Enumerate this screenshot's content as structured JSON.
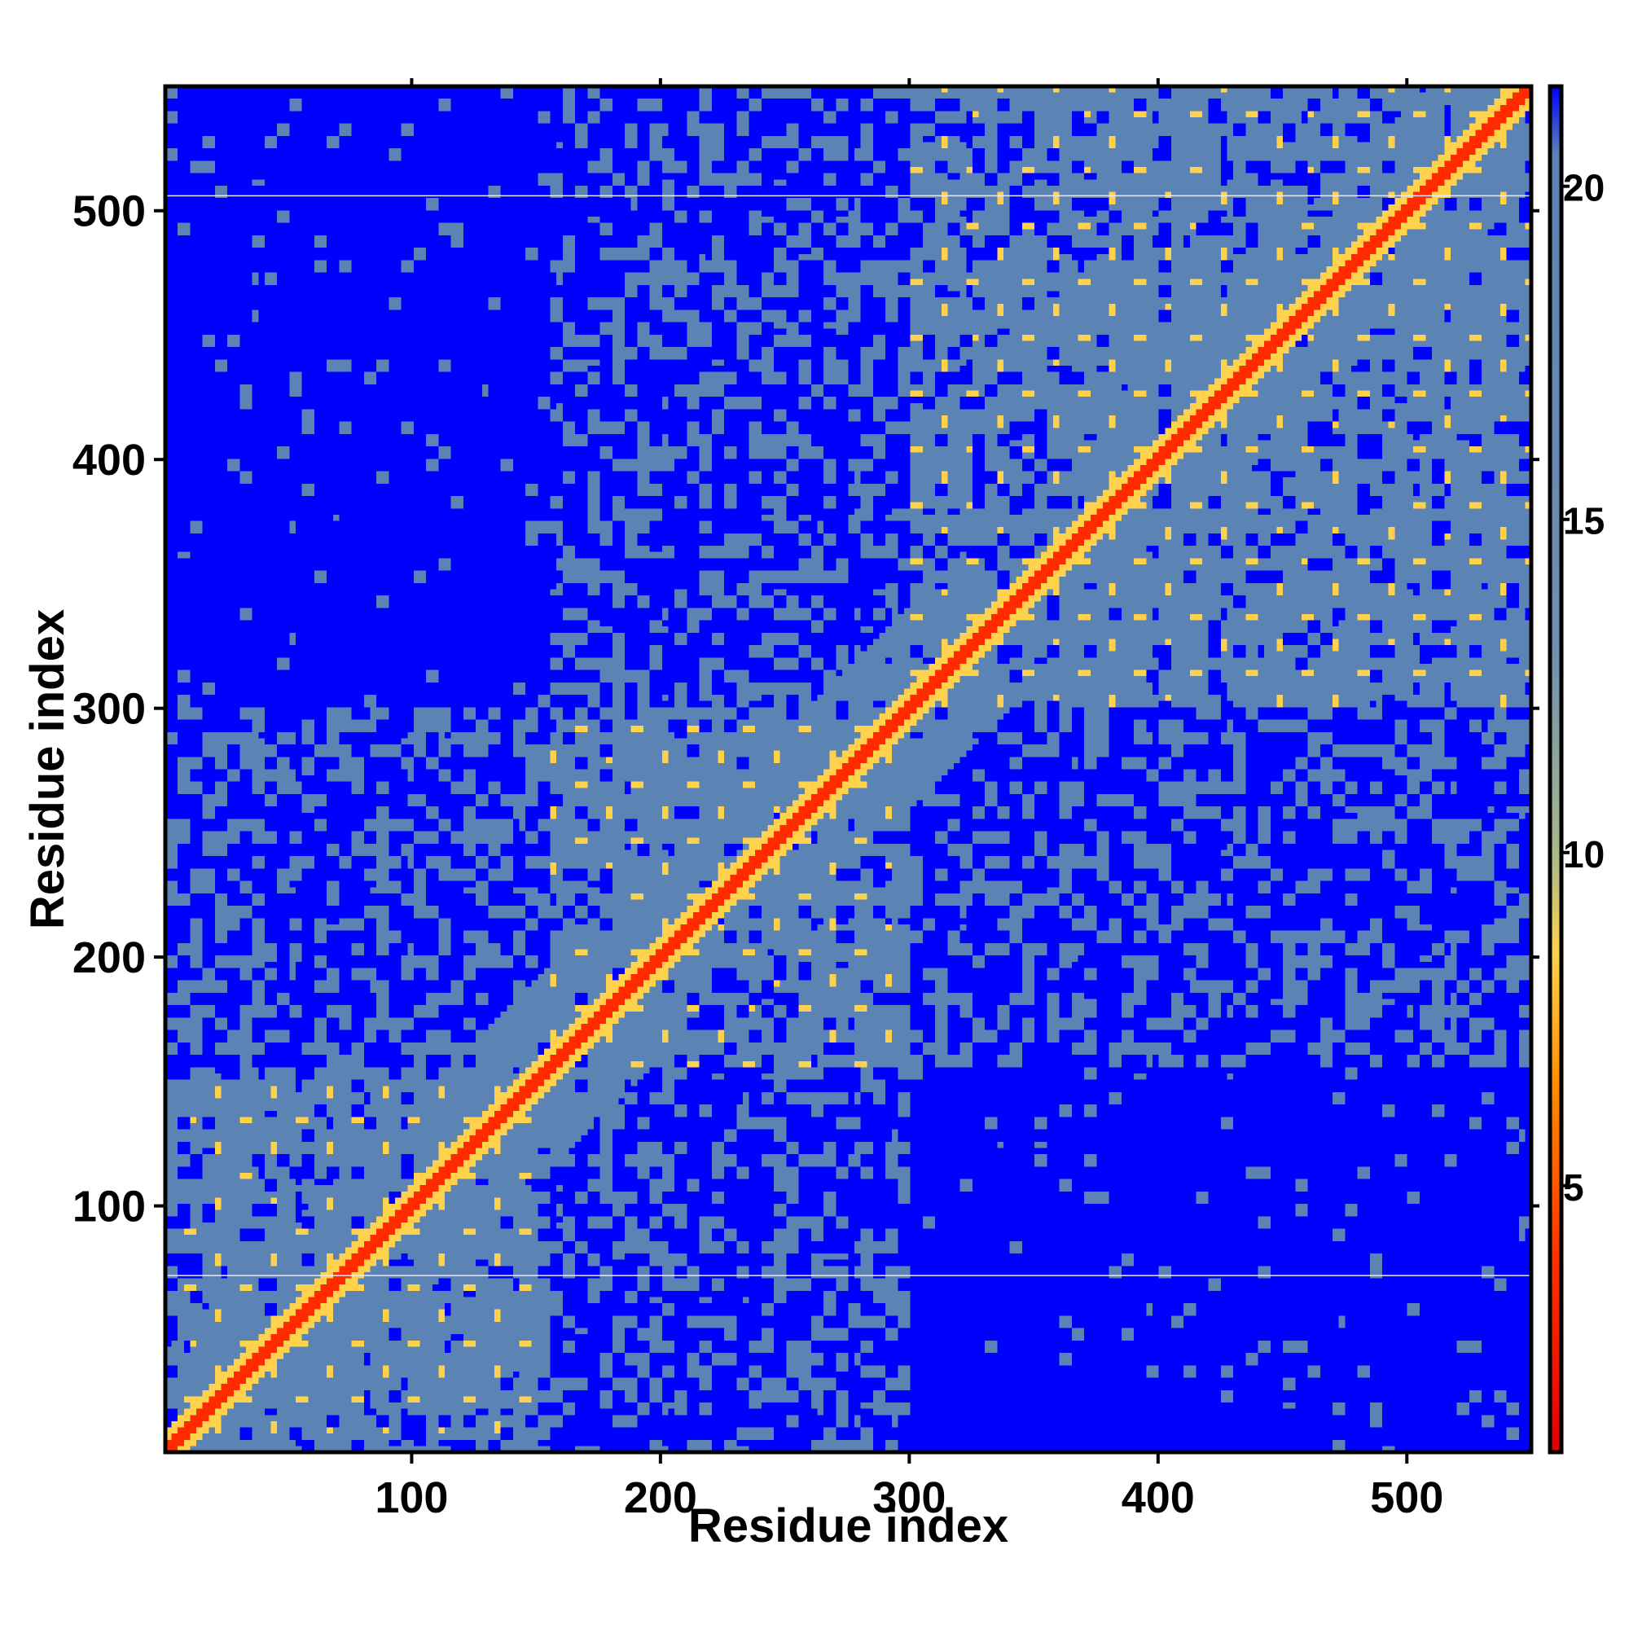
{
  "chart_data": {
    "type": "heatmap",
    "title": "",
    "xlabel": "Residue index",
    "ylabel": "Residue index",
    "x_range": [
      1,
      550
    ],
    "y_range": [
      1,
      550
    ],
    "x_ticks": [
      100,
      200,
      300,
      400,
      500
    ],
    "y_ticks": [
      100,
      200,
      300,
      400,
      500
    ],
    "x_tick_labels": [
      "100",
      "200",
      "300",
      "400",
      "500"
    ],
    "y_tick_labels": [
      "100",
      "200",
      "300",
      "400",
      "500"
    ],
    "grid": false,
    "colorbar": {
      "range": [
        1,
        21.5
      ],
      "ticks": [
        5,
        10,
        15,
        20
      ],
      "tick_labels": [
        "5",
        "10",
        "15",
        "20"
      ],
      "placement": "right",
      "stops": [
        {
          "value": 1,
          "color": "#e00000"
        },
        {
          "value": 4,
          "color": "#ff3300"
        },
        {
          "value": 6.5,
          "color": "#ff8c00"
        },
        {
          "value": 8.5,
          "color": "#ffd24d"
        },
        {
          "value": 10,
          "color": "#a8b88a"
        },
        {
          "value": 13,
          "color": "#6f8fb0"
        },
        {
          "value": 20.5,
          "color": "#5a82b4"
        },
        {
          "value": 21.5,
          "color": "#0000ff"
        }
      ]
    },
    "colors": {
      "far": "#0000ff",
      "mid": "#5b84b4",
      "near": "#ffd24d",
      "contact": "#ff2a00"
    },
    "domains": [
      {
        "start": 1,
        "end": 155
      },
      {
        "start": 155,
        "end": 300
      },
      {
        "start": 300,
        "end": 550
      }
    ],
    "description_values": {
      "diagonal_distance": 3.8,
      "far_distance": 21.5,
      "reference_lines_y": [
        72,
        506
      ]
    }
  }
}
